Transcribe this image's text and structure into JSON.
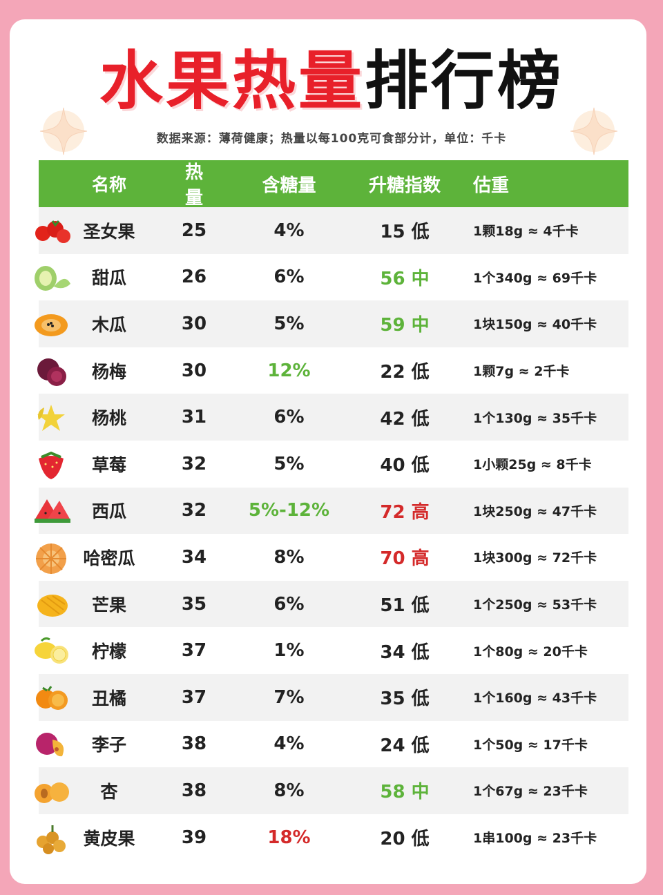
{
  "title": {
    "part_red": "水果热量",
    "part_black": "排行榜"
  },
  "subtitle": "数据来源：薄荷健康；热量以每100克可食部分计，单位：千卡",
  "headers": {
    "name": "名称",
    "calories": "热量",
    "sugar": "含糖量",
    "gi": "升糖指数",
    "weight": "估重"
  },
  "colors": {
    "header_bg": "#5db33a",
    "green": "#5db33a",
    "red": "#d42a2a",
    "normal": "#222222"
  },
  "rows": [
    {
      "icon": "cherry-tomato-icon",
      "name": "圣女果",
      "calories": "25",
      "sugar": "4%",
      "sugar_color": "normal",
      "gi": "15 低",
      "gi_color": "normal",
      "weight": "1颗18g ≈ 4千卡"
    },
    {
      "icon": "melon-icon",
      "name": "甜瓜",
      "calories": "26",
      "sugar": "6%",
      "sugar_color": "normal",
      "gi": "56 中",
      "gi_color": "green",
      "weight": "1个340g ≈ 69千卡"
    },
    {
      "icon": "papaya-icon",
      "name": "木瓜",
      "calories": "30",
      "sugar": "5%",
      "sugar_color": "normal",
      "gi": "59 中",
      "gi_color": "green",
      "weight": "1块150g ≈ 40千卡"
    },
    {
      "icon": "bayberry-icon",
      "name": "杨梅",
      "calories": "30",
      "sugar": "12%",
      "sugar_color": "green",
      "gi": "22 低",
      "gi_color": "normal",
      "weight": "1颗7g ≈ 2千卡"
    },
    {
      "icon": "starfruit-icon",
      "name": "杨桃",
      "calories": "31",
      "sugar": "6%",
      "sugar_color": "normal",
      "gi": "42 低",
      "gi_color": "normal",
      "weight": "1个130g ≈ 35千卡"
    },
    {
      "icon": "strawberry-icon",
      "name": "草莓",
      "calories": "32",
      "sugar": "5%",
      "sugar_color": "normal",
      "gi": "40 低",
      "gi_color": "normal",
      "weight": "1小颗25g ≈ 8千卡"
    },
    {
      "icon": "watermelon-icon",
      "name": "西瓜",
      "calories": "32",
      "sugar": "5%-12%",
      "sugar_color": "green",
      "gi": "72 高",
      "gi_color": "red",
      "weight": "1块250g ≈ 47千卡"
    },
    {
      "icon": "hami-melon-icon",
      "name": "哈密瓜",
      "calories": "34",
      "sugar": "8%",
      "sugar_color": "normal",
      "gi": "70 高",
      "gi_color": "red",
      "weight": "1块300g ≈ 72千卡"
    },
    {
      "icon": "mango-icon",
      "name": "芒果",
      "calories": "35",
      "sugar": "6%",
      "sugar_color": "normal",
      "gi": "51 低",
      "gi_color": "normal",
      "weight": "1个250g ≈ 53千卡"
    },
    {
      "icon": "lemon-icon",
      "name": "柠檬",
      "calories": "37",
      "sugar": "1%",
      "sugar_color": "normal",
      "gi": "34 低",
      "gi_color": "normal",
      "weight": "1个80g ≈ 20千卡"
    },
    {
      "icon": "orange-icon",
      "name": "丑橘",
      "calories": "37",
      "sugar": "7%",
      "sugar_color": "normal",
      "gi": "35 低",
      "gi_color": "normal",
      "weight": "1个160g ≈ 43千卡"
    },
    {
      "icon": "plum-icon",
      "name": "李子",
      "calories": "38",
      "sugar": "4%",
      "sugar_color": "normal",
      "gi": "24 低",
      "gi_color": "normal",
      "weight": "1个50g ≈ 17千卡"
    },
    {
      "icon": "apricot-icon",
      "name": "杏",
      "calories": "38",
      "sugar": "8%",
      "sugar_color": "normal",
      "gi": "58 中",
      "gi_color": "green",
      "weight": "1个67g ≈ 23千卡"
    },
    {
      "icon": "wampee-icon",
      "name": "黄皮果",
      "calories": "39",
      "sugar": "18%",
      "sugar_color": "red",
      "gi": "20 低",
      "gi_color": "normal",
      "weight": "1串100g ≈ 23千卡"
    }
  ]
}
